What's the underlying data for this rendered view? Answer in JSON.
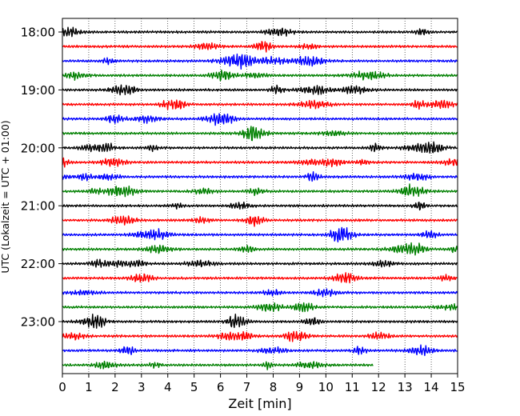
{
  "chart_data": {
    "type": "line",
    "subtype": "helicorder",
    "xlabel": "Zeit  [min]",
    "ylabel": "UTC (Lokalzeit = UTC + 01:00)",
    "xlim": [
      0,
      15
    ],
    "x_ticks": [
      0,
      1,
      2,
      3,
      4,
      5,
      6,
      7,
      8,
      9,
      10,
      11,
      12,
      13,
      14,
      15
    ],
    "y_tick_labels": [
      "18:00",
      "19:00",
      "20:00",
      "21:00",
      "22:00",
      "23:00"
    ],
    "row_minutes": 15,
    "rows_per_hour": 4,
    "trace_count": 24,
    "trace_colors": [
      "#000000",
      "#ff0000",
      "#0000ff",
      "#008000"
    ],
    "last_trace_end_min": 11.8,
    "grid": {
      "x": true,
      "style": "dotted"
    }
  }
}
